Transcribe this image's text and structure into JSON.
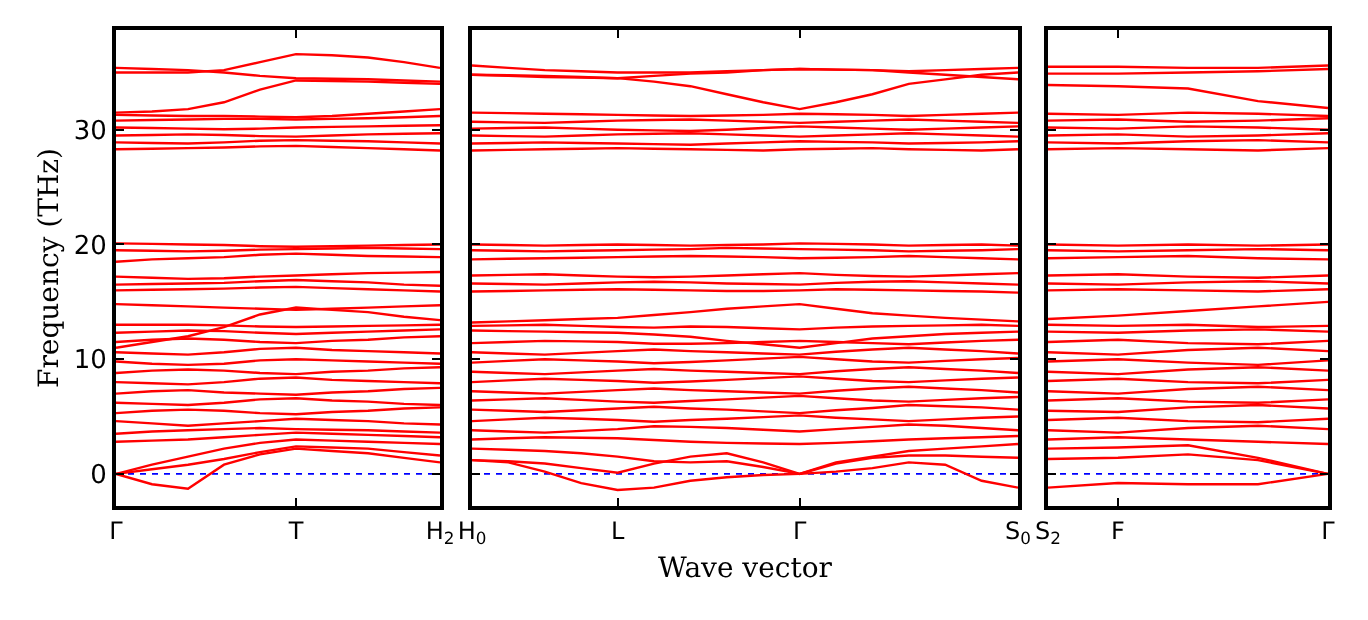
{
  "chart_data": [
    {
      "type": "line",
      "ylabel": "Frequency (THz)",
      "tick_labels": "xy",
      "marker": "none",
      "line_style": "solid",
      "categories": [
        "Γ",
        null,
        null,
        null,
        null,
        "T",
        null,
        null,
        null,
        "H$_{2}$"
      ],
      "ylim": [
        -2.8,
        38.7
      ],
      "yticks": [
        0,
        10,
        20,
        30
      ],
      "ref_lines": [
        {
          "axis": "y",
          "value": 0,
          "label": null,
          "color": "#0000ff",
          "line_style": "dotted"
        }
      ],
      "series": [
        {
          "color": "#ff0000",
          "values": [
            0,
            -0.9,
            -1.3,
            0.8,
            1.7,
            2.2,
            2.0,
            1.8,
            1.4,
            1.0
          ]
        },
        {
          "color": "#ff0000",
          "values": [
            0,
            0.4,
            0.8,
            1.3,
            1.9,
            2.4,
            2.3,
            2.2,
            1.9,
            1.6
          ]
        },
        {
          "color": "#ff0000",
          "values": [
            0,
            0.8,
            1.5,
            2.2,
            2.7,
            3.0,
            2.9,
            2.8,
            2.7,
            2.6
          ]
        },
        {
          "color": "#ff0000",
          "values": [
            2.8,
            2.9,
            3.0,
            3.2,
            3.4,
            3.6,
            3.5,
            3.4,
            3.3,
            3.2
          ]
        },
        {
          "color": "#ff0000",
          "values": [
            3.5,
            3.7,
            3.8,
            3.9,
            4.0,
            3.9,
            3.85,
            3.8,
            3.7,
            3.6
          ]
        },
        {
          "color": "#ff0000",
          "values": [
            4.6,
            4.4,
            4.2,
            4.4,
            4.6,
            4.8,
            4.7,
            4.6,
            4.4,
            4.3
          ]
        },
        {
          "color": "#ff0000",
          "values": [
            5.3,
            5.5,
            5.6,
            5.5,
            5.3,
            5.2,
            5.4,
            5.5,
            5.7,
            5.8
          ]
        },
        {
          "color": "#ff0000",
          "values": [
            6.2,
            6.1,
            6.0,
            6.2,
            6.5,
            6.6,
            6.4,
            6.3,
            6.1,
            6.0
          ]
        },
        {
          "color": "#ff0000",
          "values": [
            7.0,
            7.2,
            7.3,
            7.1,
            7.0,
            6.9,
            7.1,
            7.2,
            7.4,
            7.5
          ]
        },
        {
          "color": "#ff0000",
          "values": [
            8.0,
            7.9,
            7.8,
            8.0,
            8.3,
            8.4,
            8.2,
            8.1,
            8.0,
            7.9
          ]
        },
        {
          "color": "#ff0000",
          "values": [
            8.8,
            9.0,
            9.1,
            9.0,
            8.8,
            8.7,
            8.9,
            9.0,
            9.2,
            9.3
          ]
        },
        {
          "color": "#ff0000",
          "values": [
            9.8,
            9.6,
            9.5,
            9.6,
            9.9,
            10.0,
            9.9,
            9.8,
            9.7,
            9.6
          ]
        },
        {
          "color": "#ff0000",
          "values": [
            10.6,
            10.5,
            10.4,
            10.6,
            10.9,
            11.0,
            10.8,
            10.7,
            10.6,
            10.5
          ]
        },
        {
          "color": "#ff0000",
          "values": [
            11.5,
            11.7,
            11.8,
            11.7,
            11.5,
            11.4,
            11.6,
            11.7,
            11.9,
            12.0
          ]
        },
        {
          "color": "#ff0000",
          "values": [
            12.3,
            12.4,
            12.5,
            12.45,
            12.3,
            12.2,
            12.3,
            12.4,
            12.5,
            12.6
          ]
        },
        {
          "color": "#ff0000",
          "values": [
            13.0,
            13.0,
            13.0,
            12.95,
            12.85,
            12.8,
            12.85,
            12.9,
            12.95,
            13.0
          ]
        },
        {
          "color": "#ff0000",
          "values": [
            11.0,
            11.5,
            12.0,
            12.8,
            13.9,
            14.5,
            14.3,
            14.1,
            13.7,
            13.4
          ]
        },
        {
          "color": "#ff0000",
          "values": [
            14.8,
            14.7,
            14.6,
            14.5,
            14.4,
            14.3,
            14.4,
            14.5,
            14.6,
            14.7
          ]
        },
        {
          "color": "#ff0000",
          "values": [
            16.0,
            16.05,
            16.1,
            16.15,
            16.25,
            16.3,
            16.2,
            16.1,
            16.0,
            15.9
          ]
        },
        {
          "color": "#ff0000",
          "values": [
            16.5,
            16.55,
            16.6,
            16.65,
            16.8,
            16.9,
            16.8,
            16.7,
            16.5,
            16.4
          ]
        },
        {
          "color": "#ff0000",
          "values": [
            17.2,
            17.1,
            17.0,
            17.05,
            17.2,
            17.3,
            17.4,
            17.5,
            17.55,
            17.6
          ]
        },
        {
          "color": "#ff0000",
          "values": [
            18.5,
            18.7,
            18.8,
            18.9,
            19.1,
            19.2,
            19.1,
            19.0,
            18.95,
            18.9
          ]
        },
        {
          "color": "#ff0000",
          "values": [
            19.5,
            19.45,
            19.4,
            19.45,
            19.55,
            19.6,
            19.65,
            19.7,
            19.65,
            19.6
          ]
        },
        {
          "color": "#ff0000",
          "values": [
            20.1,
            20.05,
            20.0,
            19.95,
            19.85,
            19.8,
            19.85,
            19.9,
            19.95,
            20.0
          ]
        },
        {
          "color": "#ff0000",
          "values": [
            28.3,
            28.35,
            28.4,
            28.45,
            28.55,
            28.6,
            28.5,
            28.4,
            28.3,
            28.2
          ]
        },
        {
          "color": "#ff0000",
          "values": [
            28.9,
            28.85,
            28.8,
            28.9,
            29.05,
            29.1,
            29.05,
            29.0,
            28.9,
            28.8
          ]
        },
        {
          "color": "#ff0000",
          "values": [
            29.5,
            29.55,
            29.6,
            29.55,
            29.45,
            29.4,
            29.5,
            29.6,
            29.65,
            29.7
          ]
        },
        {
          "color": "#ff0000",
          "values": [
            30.2,
            30.15,
            30.1,
            30.05,
            30.1,
            30.2,
            30.25,
            30.3,
            30.35,
            30.4
          ]
        },
        {
          "color": "#ff0000",
          "values": [
            30.8,
            30.85,
            30.9,
            30.95,
            30.95,
            30.9,
            30.95,
            31.0,
            31.1,
            31.2
          ]
        },
        {
          "color": "#ff0000",
          "values": [
            31.3,
            31.25,
            31.2,
            31.2,
            31.15,
            31.1,
            31.2,
            31.4,
            31.6,
            31.8
          ]
        },
        {
          "color": "#ff0000",
          "values": [
            31.5,
            31.6,
            31.8,
            32.4,
            33.5,
            34.3,
            34.25,
            34.2,
            34.1,
            34.0
          ]
        },
        {
          "color": "#ff0000",
          "values": [
            35.0,
            35.0,
            35.0,
            35.2,
            35.9,
            36.6,
            36.5,
            36.3,
            35.9,
            35.4
          ]
        },
        {
          "color": "#ff0000",
          "values": [
            35.4,
            35.3,
            35.2,
            35.0,
            34.7,
            34.5,
            34.45,
            34.4,
            34.3,
            34.2
          ]
        }
      ]
    },
    {
      "type": "line",
      "xlabel": "Wave vector",
      "tick_labels": "x",
      "marker": "none",
      "line_style": "solid",
      "categories": [
        "H$_{0}$",
        null,
        null,
        null,
        "L",
        null,
        null,
        null,
        null,
        "Γ",
        null,
        null,
        null,
        null,
        null,
        "S$_{0}$"
      ],
      "ylim": [
        -2.8,
        38.7
      ],
      "yticks": [
        0,
        10,
        20,
        30
      ],
      "ref_lines": [
        {
          "axis": "y",
          "value": 0,
          "label": null,
          "color": "#0000ff",
          "line_style": "dotted"
        }
      ],
      "series": [
        {
          "color": "#ff0000",
          "values": [
            1.2,
            1.0,
            0.2,
            -0.8,
            -1.4,
            -1.2,
            -0.6,
            -0.3,
            -0.1,
            0,
            0.2,
            0.5,
            1.0,
            0.8,
            -0.6,
            -1.2
          ]
        },
        {
          "color": "#ff0000",
          "values": [
            1.2,
            1.1,
            0.9,
            0.5,
            0.1,
            0.9,
            1.5,
            1.8,
            1.0,
            0,
            0.9,
            1.4,
            1.6,
            1.6,
            1.5,
            1.4
          ]
        },
        {
          "color": "#ff0000",
          "values": [
            2.2,
            2.1,
            2.0,
            1.8,
            1.5,
            1.1,
            1.0,
            1.1,
            0.6,
            0,
            1.0,
            1.5,
            2.0,
            2.2,
            2.4,
            2.6
          ]
        },
        {
          "color": "#ff0000",
          "values": [
            3.0,
            3.1,
            3.2,
            3.15,
            3.1,
            2.95,
            2.8,
            2.7,
            2.65,
            2.6,
            2.7,
            2.85,
            3.0,
            3.1,
            3.2,
            3.3
          ]
        },
        {
          "color": "#ff0000",
          "values": [
            3.8,
            3.7,
            3.6,
            3.75,
            3.9,
            4.15,
            4.1,
            4.0,
            3.85,
            3.7,
            3.9,
            4.1,
            4.3,
            4.2,
            4.0,
            3.8
          ]
        },
        {
          "color": "#ff0000",
          "values": [
            4.6,
            4.75,
            4.9,
            4.8,
            4.7,
            4.55,
            4.7,
            4.8,
            4.95,
            5.1,
            4.9,
            4.75,
            4.6,
            4.75,
            4.9,
            5.0
          ]
        },
        {
          "color": "#ff0000",
          "values": [
            5.6,
            5.5,
            5.4,
            5.55,
            5.7,
            5.85,
            5.7,
            5.6,
            5.45,
            5.3,
            5.55,
            5.75,
            6.0,
            5.9,
            5.8,
            5.6
          ]
        },
        {
          "color": "#ff0000",
          "values": [
            6.4,
            6.5,
            6.6,
            6.45,
            6.3,
            6.2,
            6.35,
            6.5,
            6.65,
            6.8,
            6.6,
            6.4,
            6.3,
            6.45,
            6.6,
            6.7
          ]
        },
        {
          "color": "#ff0000",
          "values": [
            7.2,
            7.1,
            7.0,
            7.15,
            7.3,
            7.45,
            7.3,
            7.2,
            7.1,
            7.0,
            7.25,
            7.45,
            7.6,
            7.45,
            7.3,
            7.1
          ]
        },
        {
          "color": "#ff0000",
          "values": [
            8.0,
            8.15,
            8.3,
            8.2,
            8.1,
            7.95,
            8.05,
            8.2,
            8.35,
            8.5,
            8.3,
            8.1,
            8.0,
            8.15,
            8.3,
            8.4
          ]
        },
        {
          "color": "#ff0000",
          "values": [
            8.9,
            8.8,
            8.7,
            8.85,
            9.0,
            9.15,
            9.0,
            8.9,
            8.8,
            8.7,
            8.95,
            9.15,
            9.3,
            9.15,
            9.0,
            8.8
          ]
        },
        {
          "color": "#ff0000",
          "values": [
            9.7,
            9.85,
            10.0,
            9.9,
            9.8,
            9.65,
            9.75,
            9.9,
            10.05,
            10.2,
            10.0,
            9.8,
            9.7,
            9.85,
            10.0,
            10.1
          ]
        },
        {
          "color": "#ff0000",
          "values": [
            10.6,
            10.5,
            10.4,
            10.55,
            10.7,
            10.85,
            10.7,
            10.6,
            10.5,
            10.4,
            10.65,
            10.85,
            11.0,
            10.85,
            10.7,
            10.5
          ]
        },
        {
          "color": "#ff0000",
          "values": [
            11.4,
            11.5,
            11.6,
            11.55,
            11.5,
            11.35,
            11.35,
            11.4,
            11.5,
            11.6,
            11.5,
            11.4,
            11.3,
            11.45,
            11.6,
            11.7
          ]
        },
        {
          "color": "#ff0000",
          "values": [
            12.5,
            12.45,
            12.4,
            12.35,
            12.3,
            12.15,
            11.95,
            11.6,
            11.3,
            11.0,
            11.4,
            11.8,
            12.0,
            12.2,
            12.3,
            12.4
          ]
        },
        {
          "color": "#ff0000",
          "values": [
            12.9,
            12.95,
            13.0,
            12.9,
            12.8,
            12.75,
            12.85,
            12.8,
            12.7,
            12.6,
            12.75,
            12.85,
            12.9,
            12.95,
            13.0,
            12.9
          ]
        },
        {
          "color": "#ff0000",
          "values": [
            13.2,
            13.3,
            13.4,
            13.5,
            13.6,
            13.85,
            14.1,
            14.4,
            14.6,
            14.8,
            14.4,
            14.0,
            13.8,
            13.6,
            13.45,
            13.3
          ]
        },
        {
          "color": "#ff0000",
          "values": [
            15.9,
            15.95,
            16.0,
            16.05,
            16.1,
            16.05,
            16.0,
            15.95,
            15.95,
            16.0,
            16.1,
            16.05,
            16.0,
            15.95,
            15.9,
            15.8
          ]
        },
        {
          "color": "#ff0000",
          "values": [
            16.6,
            16.55,
            16.5,
            16.6,
            16.7,
            16.75,
            16.7,
            16.6,
            16.55,
            16.5,
            16.65,
            16.75,
            16.8,
            16.7,
            16.6,
            16.5
          ]
        },
        {
          "color": "#ff0000",
          "values": [
            17.3,
            17.35,
            17.4,
            17.3,
            17.2,
            17.15,
            17.2,
            17.3,
            17.4,
            17.5,
            17.35,
            17.25,
            17.2,
            17.3,
            17.4,
            17.5
          ]
        },
        {
          "color": "#ff0000",
          "values": [
            18.7,
            18.75,
            18.8,
            18.85,
            18.9,
            18.95,
            19.0,
            18.95,
            18.9,
            18.8,
            18.85,
            18.9,
            19.0,
            18.9,
            18.8,
            18.7
          ]
        },
        {
          "color": "#ff0000",
          "values": [
            19.5,
            19.45,
            19.4,
            19.45,
            19.5,
            19.55,
            19.6,
            19.7,
            19.65,
            19.6,
            19.55,
            19.5,
            19.4,
            19.45,
            19.5,
            19.6
          ]
        },
        {
          "color": "#ff0000",
          "values": [
            20.0,
            19.95,
            19.9,
            19.95,
            20.0,
            19.95,
            19.9,
            19.95,
            20.0,
            20.1,
            20.05,
            20.0,
            19.9,
            19.95,
            20.0,
            19.9
          ]
        },
        {
          "color": "#ff0000",
          "values": [
            28.2,
            28.25,
            28.3,
            28.35,
            28.4,
            28.35,
            28.3,
            28.25,
            28.2,
            28.3,
            28.35,
            28.4,
            28.3,
            28.25,
            28.2,
            28.3
          ]
        },
        {
          "color": "#ff0000",
          "values": [
            28.8,
            28.85,
            28.9,
            28.85,
            28.8,
            28.75,
            28.7,
            28.8,
            28.9,
            29.0,
            28.95,
            28.9,
            28.8,
            28.85,
            28.9,
            29.0
          ]
        },
        {
          "color": "#ff0000",
          "values": [
            29.5,
            29.45,
            29.4,
            29.5,
            29.6,
            29.65,
            29.7,
            29.6,
            29.5,
            29.4,
            29.5,
            29.6,
            29.7,
            29.6,
            29.5,
            29.4
          ]
        },
        {
          "color": "#ff0000",
          "values": [
            30.1,
            30.15,
            30.2,
            30.1,
            30.0,
            29.95,
            29.9,
            30.0,
            30.15,
            30.3,
            30.2,
            30.1,
            30.0,
            30.1,
            30.2,
            30.3
          ]
        },
        {
          "color": "#ff0000",
          "values": [
            30.7,
            30.65,
            30.6,
            30.7,
            30.8,
            30.85,
            30.9,
            30.8,
            30.7,
            30.6,
            30.7,
            30.8,
            30.9,
            30.8,
            30.7,
            30.6
          ]
        },
        {
          "color": "#ff0000",
          "values": [
            31.5,
            31.45,
            31.4,
            31.35,
            31.3,
            31.25,
            31.2,
            31.25,
            31.3,
            31.4,
            31.35,
            31.3,
            31.2,
            31.3,
            31.4,
            31.5
          ]
        },
        {
          "color": "#ff0000",
          "values": [
            34.8,
            34.7,
            34.6,
            34.55,
            34.5,
            34.2,
            33.8,
            33.1,
            32.4,
            31.8,
            32.4,
            33.1,
            34.0,
            34.4,
            34.8,
            35.0
          ]
        },
        {
          "color": "#ff0000",
          "values": [
            35.6,
            35.4,
            35.2,
            35.1,
            35.0,
            35.0,
            35.0,
            35.1,
            35.2,
            35.3,
            35.25,
            35.2,
            35.0,
            34.8,
            34.6,
            34.4
          ]
        },
        {
          "color": "#ff0000",
          "values": [
            34.8,
            34.75,
            34.7,
            34.6,
            34.5,
            34.7,
            34.9,
            35.0,
            35.2,
            35.3,
            35.25,
            35.2,
            35.1,
            35.2,
            35.3,
            35.4
          ]
        }
      ]
    },
    {
      "type": "line",
      "tick_labels": "x",
      "marker": "none",
      "line_style": "solid",
      "categories": [
        "S$_{2}$",
        "F",
        null,
        null,
        "Γ"
      ],
      "ylim": [
        -2.8,
        38.7
      ],
      "yticks": [
        0,
        10,
        20,
        30
      ],
      "ref_lines": [
        {
          "axis": "y",
          "value": 0,
          "label": null,
          "color": "#0000ff",
          "line_style": "dotted"
        }
      ],
      "series": [
        {
          "color": "#ff0000",
          "values": [
            -1.2,
            -0.8,
            -0.9,
            -0.9,
            0
          ]
        },
        {
          "color": "#ff0000",
          "values": [
            1.3,
            1.4,
            1.7,
            1.2,
            0
          ]
        },
        {
          "color": "#ff0000",
          "values": [
            2.2,
            2.3,
            2.5,
            1.4,
            0
          ]
        },
        {
          "color": "#ff0000",
          "values": [
            3.0,
            3.2,
            3.0,
            2.8,
            2.6
          ]
        },
        {
          "color": "#ff0000",
          "values": [
            3.8,
            3.6,
            4.0,
            4.2,
            3.9
          ]
        },
        {
          "color": "#ff0000",
          "values": [
            4.7,
            4.9,
            4.6,
            4.5,
            4.8
          ]
        },
        {
          "color": "#ff0000",
          "values": [
            5.5,
            5.4,
            5.8,
            6.0,
            5.7
          ]
        },
        {
          "color": "#ff0000",
          "values": [
            6.4,
            6.6,
            6.3,
            6.2,
            6.5
          ]
        },
        {
          "color": "#ff0000",
          "values": [
            7.2,
            7.0,
            7.4,
            7.6,
            7.3
          ]
        },
        {
          "color": "#ff0000",
          "values": [
            8.1,
            8.3,
            8.0,
            7.9,
            8.2
          ]
        },
        {
          "color": "#ff0000",
          "values": [
            8.9,
            8.7,
            9.1,
            9.3,
            9.0
          ]
        },
        {
          "color": "#ff0000",
          "values": [
            9.8,
            10.0,
            9.7,
            9.5,
            9.9
          ]
        },
        {
          "color": "#ff0000",
          "values": [
            10.6,
            10.4,
            10.8,
            11.0,
            10.7
          ]
        },
        {
          "color": "#ff0000",
          "values": [
            11.5,
            11.7,
            11.4,
            11.3,
            11.6
          ]
        },
        {
          "color": "#ff0000",
          "values": [
            12.4,
            12.3,
            12.5,
            12.6,
            12.4
          ]
        },
        {
          "color": "#ff0000",
          "values": [
            13.0,
            12.9,
            13.0,
            12.8,
            12.9
          ]
        },
        {
          "color": "#ff0000",
          "values": [
            13.5,
            13.8,
            14.2,
            14.6,
            15.0
          ]
        },
        {
          "color": "#ff0000",
          "values": [
            16.0,
            16.1,
            16.0,
            15.9,
            16.1
          ]
        },
        {
          "color": "#ff0000",
          "values": [
            16.6,
            16.5,
            16.7,
            16.8,
            16.6
          ]
        },
        {
          "color": "#ff0000",
          "values": [
            17.3,
            17.4,
            17.2,
            17.1,
            17.3
          ]
        },
        {
          "color": "#ff0000",
          "values": [
            18.8,
            18.9,
            19.0,
            18.8,
            18.7
          ]
        },
        {
          "color": "#ff0000",
          "values": [
            19.5,
            19.4,
            19.5,
            19.6,
            19.5
          ]
        },
        {
          "color": "#ff0000",
          "values": [
            20.0,
            19.9,
            20.0,
            19.9,
            20.0
          ]
        },
        {
          "color": "#ff0000",
          "values": [
            28.3,
            28.4,
            28.3,
            28.2,
            28.4
          ]
        },
        {
          "color": "#ff0000",
          "values": [
            28.9,
            28.8,
            29.0,
            29.1,
            28.9
          ]
        },
        {
          "color": "#ff0000",
          "values": [
            29.5,
            29.6,
            29.4,
            29.5,
            29.7
          ]
        },
        {
          "color": "#ff0000",
          "values": [
            30.2,
            30.1,
            30.3,
            30.2,
            30.0
          ]
        },
        {
          "color": "#ff0000",
          "values": [
            30.8,
            30.9,
            30.7,
            30.8,
            31.0
          ]
        },
        {
          "color": "#ff0000",
          "values": [
            31.4,
            31.3,
            31.5,
            31.4,
            31.2
          ]
        },
        {
          "color": "#ff0000",
          "values": [
            33.9,
            33.8,
            33.6,
            32.5,
            31.9
          ]
        },
        {
          "color": "#ff0000",
          "values": [
            34.9,
            34.9,
            35.0,
            35.1,
            35.3
          ]
        },
        {
          "color": "#ff0000",
          "values": [
            35.5,
            35.5,
            35.4,
            35.4,
            35.6
          ]
        }
      ]
    }
  ]
}
